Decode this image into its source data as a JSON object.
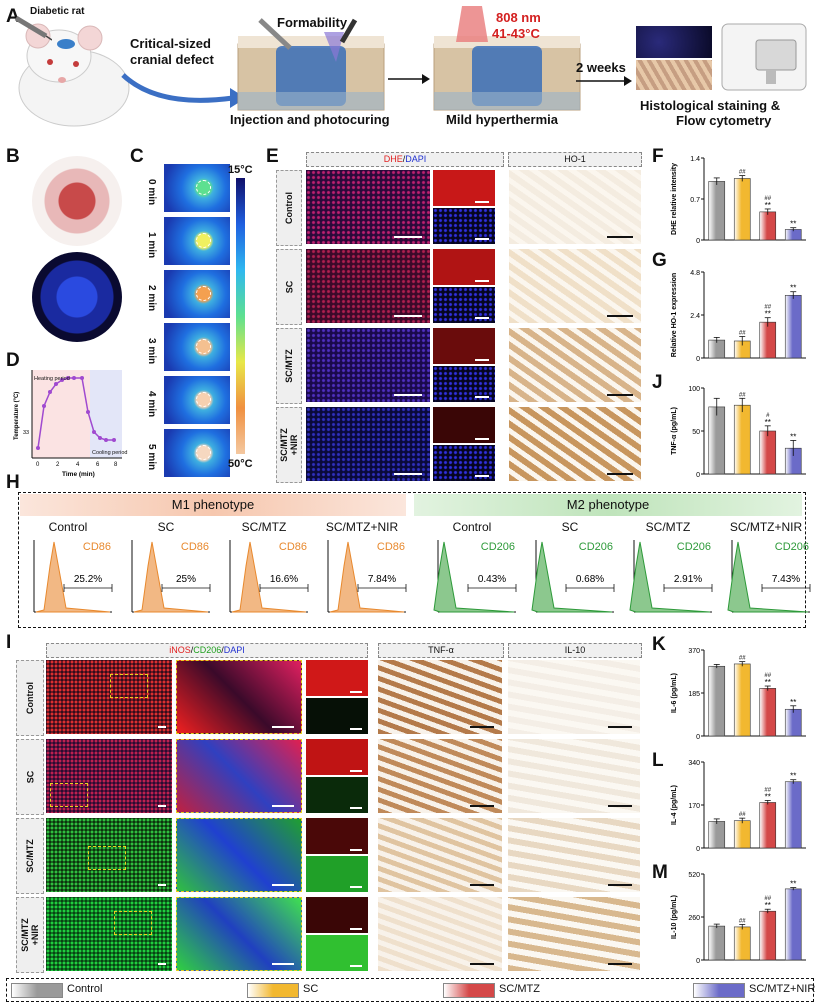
{
  "panel_letters": {
    "A": "A",
    "B": "B",
    "C": "C",
    "D": "D",
    "E": "E",
    "F": "F",
    "G": "G",
    "J": "J",
    "H": "H",
    "I": "I",
    "K": "K",
    "L": "L",
    "M": "M"
  },
  "panel_a": {
    "rat_label": "Diabetic rat",
    "defect_label_1": "Critical-sized",
    "defect_label_2": "cranial defect",
    "formability": "Formability",
    "step1": "Injection and photocuring",
    "laser_line1": "808 nm",
    "laser_line2": "41-43°C",
    "step2": "Mild hyperthermia",
    "weeks": "2 weeks",
    "step3_line1": "Histological staining &",
    "step3_line2": "Flow cytometry"
  },
  "panel_c": {
    "times": [
      "0 min",
      "1 min",
      "2 min",
      "3 min",
      "4 min",
      "5 min"
    ],
    "scale_top": "15°C",
    "scale_bottom": "50°C"
  },
  "panel_d": {
    "ylabel": "Temperature (°C)",
    "xlabel": "Time (min)",
    "heating": "Heating period",
    "cooling": "Cooling period",
    "xticks": [
      "0",
      "2",
      "4",
      "6",
      "8"
    ],
    "ytick": "33"
  },
  "panel_e": {
    "dhe": "DHE",
    "sep": "/",
    "dapi": "DAPI",
    "ho1": "HO-1",
    "rows": [
      "Control",
      "SC",
      "SC/MTZ",
      "SC/MTZ\n+NIR"
    ]
  },
  "panel_h": {
    "m1": "M1 phenotype",
    "m2": "M2 phenotype",
    "groups": [
      "Control",
      "SC",
      "SC/MTZ",
      "SC/MTZ+NIR"
    ],
    "m1_marker": "CD86",
    "m2_marker": "CD206",
    "m1_values": [
      "25.2%",
      "25%",
      "16.6%",
      "7.84%"
    ],
    "m2_values": [
      "0.43%",
      "0.68%",
      "2.91%",
      "7.43%"
    ]
  },
  "panel_i": {
    "inos": "iNOS",
    "cd206": "CD206",
    "dapi": "DAPI",
    "sep": "/",
    "tnf": "TNF-α",
    "il10": "IL-10",
    "rows": [
      "Control",
      "SC",
      "SC/MTZ",
      "SC/MTZ\n+NIR"
    ]
  },
  "legend": [
    "Control",
    "SC",
    "SC/MTZ",
    "SC/MTZ+NIR"
  ],
  "colors": {
    "control": "#9a9a9a",
    "sc": "#f2b830",
    "sc_mtz": "#d44848",
    "sc_mtz_nir": "#6b6bc8"
  },
  "chart_data": [
    {
      "panel": "F",
      "type": "bar",
      "ylabel": "DHE relative intensity",
      "ylim": [
        0,
        1.4
      ],
      "yticks": [
        "0",
        "0.7",
        "1.4"
      ],
      "categories": [
        "Control",
        "SC",
        "SC/MTZ",
        "SC/MTZ+NIR"
      ],
      "values": [
        1.0,
        1.05,
        0.48,
        0.18
      ],
      "errors": [
        0.06,
        0.05,
        0.05,
        0.03
      ],
      "annotations": [
        [
          "",
          ""
        ],
        [
          "##",
          ""
        ],
        [
          "##",
          "**"
        ],
        [
          "",
          "**"
        ]
      ]
    },
    {
      "panel": "G",
      "type": "bar",
      "ylabel": "Relative HO-1 expression",
      "ylim": [
        0,
        4.8
      ],
      "yticks": [
        "0",
        "2.4",
        "4.8"
      ],
      "categories": [
        "Control",
        "SC",
        "SC/MTZ",
        "SC/MTZ+NIR"
      ],
      "values": [
        1.0,
        0.95,
        2.0,
        3.5
      ],
      "errors": [
        0.15,
        0.25,
        0.25,
        0.2
      ],
      "annotations": [
        [
          "",
          ""
        ],
        [
          "##",
          ""
        ],
        [
          "##",
          "**"
        ],
        [
          "",
          "**"
        ]
      ]
    },
    {
      "panel": "J",
      "type": "bar",
      "ylabel": "TNF-α (pg/mL)",
      "ylim": [
        0,
        100
      ],
      "yticks": [
        "0",
        "50",
        "100"
      ],
      "categories": [
        "Control",
        "SC",
        "SC/MTZ",
        "SC/MTZ+NIR"
      ],
      "values": [
        78,
        80,
        50,
        30
      ],
      "errors": [
        10,
        8,
        6,
        9
      ],
      "annotations": [
        [
          "",
          ""
        ],
        [
          "##",
          ""
        ],
        [
          "#",
          "**"
        ],
        [
          "",
          "**"
        ]
      ]
    },
    {
      "panel": "K",
      "type": "bar",
      "ylabel": "IL-6 (pg/mL)",
      "ylim": [
        0,
        370
      ],
      "yticks": [
        "0",
        "185",
        "370"
      ],
      "categories": [
        "Control",
        "SC",
        "SC/MTZ",
        "SC/MTZ+NIR"
      ],
      "values": [
        300,
        310,
        205,
        115
      ],
      "errors": [
        8,
        10,
        10,
        15
      ],
      "annotations": [
        [
          "",
          ""
        ],
        [
          "##",
          ""
        ],
        [
          "##",
          "**"
        ],
        [
          "",
          "**"
        ]
      ]
    },
    {
      "panel": "L",
      "type": "bar",
      "ylabel": "IL-4 (pg/mL)",
      "ylim": [
        0,
        340
      ],
      "yticks": [
        "0",
        "170",
        "340"
      ],
      "categories": [
        "Control",
        "SC",
        "SC/MTZ",
        "SC/MTZ+NIR"
      ],
      "values": [
        105,
        108,
        180,
        262
      ],
      "errors": [
        10,
        10,
        8,
        8
      ],
      "annotations": [
        [
          "",
          ""
        ],
        [
          "##",
          ""
        ],
        [
          "##",
          "**"
        ],
        [
          "",
          "**"
        ]
      ]
    },
    {
      "panel": "M",
      "type": "bar",
      "ylabel": "IL-10 (pg/mL)",
      "ylim": [
        0,
        520
      ],
      "yticks": [
        "0",
        "260",
        "520"
      ],
      "categories": [
        "Control",
        "SC",
        "SC/MTZ",
        "SC/MTZ+NIR"
      ],
      "values": [
        205,
        200,
        295,
        430
      ],
      "errors": [
        12,
        15,
        12,
        8
      ],
      "annotations": [
        [
          "",
          ""
        ],
        [
          "##",
          ""
        ],
        [
          "##",
          "**"
        ],
        [
          "",
          "**"
        ]
      ]
    }
  ]
}
